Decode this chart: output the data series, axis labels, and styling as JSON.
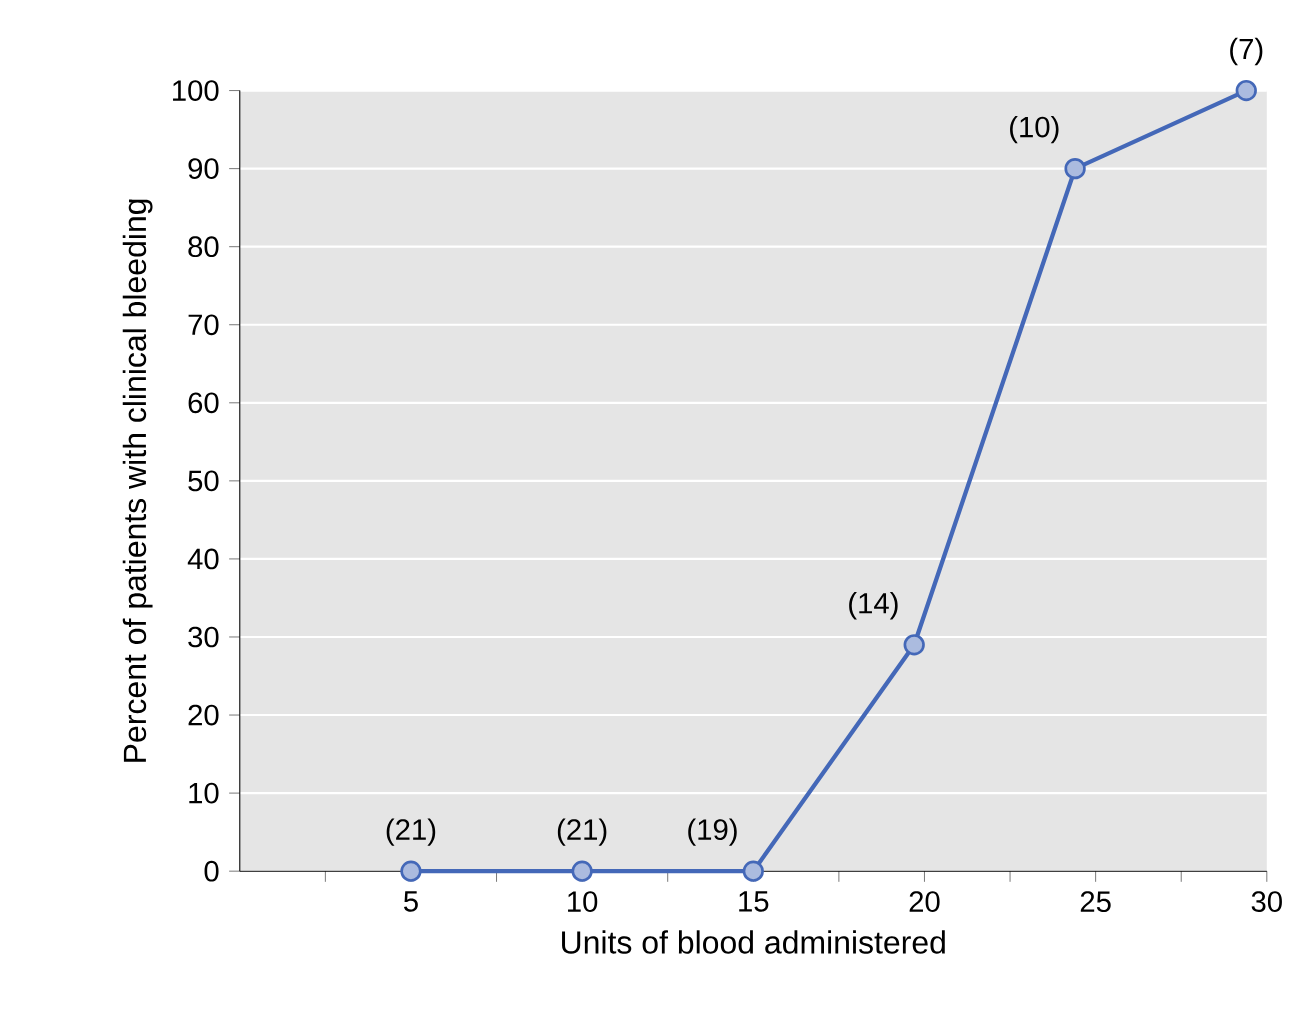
{
  "chart_data": {
    "type": "line",
    "xlabel": "Units of blood administered",
    "ylabel": "Percent of patients with clinical bleeding",
    "x": [
      5,
      10,
      15,
      19.7,
      24.4,
      29.4
    ],
    "series": [
      {
        "color": "#4468b8",
        "values": [
          0,
          0,
          0,
          29,
          90,
          100
        ]
      }
    ],
    "xlim": [
      0,
      30
    ],
    "xticks": [
      {
        "value": 2.5,
        "label": null
      },
      5,
      {
        "value": 7.5,
        "label": null
      },
      10,
      {
        "value": 12.5,
        "label": null
      },
      15,
      {
        "value": 17.5,
        "label": null
      },
      20,
      {
        "value": 22.5,
        "label": null
      },
      25,
      {
        "value": 27.5,
        "label": null
      },
      30
    ],
    "ylim": [
      0,
      100
    ],
    "yticks": [
      0,
      10,
      20,
      30,
      40,
      50,
      60,
      70,
      80,
      90,
      100
    ],
    "grid": "y",
    "marker": "circle",
    "line_style": "solid",
    "annotations": [
      {
        "text": "(21)",
        "x": 5,
        "y": 0
      },
      {
        "text": "(21)",
        "x": 10,
        "y": 0
      },
      {
        "text": "(19)",
        "x": 15,
        "y": 0
      },
      {
        "text": "(14)",
        "x": 19.7,
        "y": 29
      },
      {
        "text": "(10)",
        "x": 24.4,
        "y": 90
      },
      {
        "text": "(7)",
        "x": 29.4,
        "y": 100
      }
    ]
  }
}
